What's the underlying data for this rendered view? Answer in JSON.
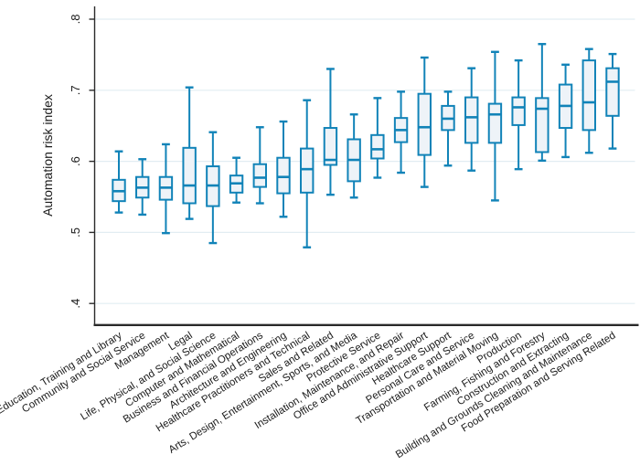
{
  "figure": {
    "background": "#ffffff",
    "aria_label": "Box plot of automation risk index by occupation category"
  },
  "chart_data": {
    "type": "box",
    "orientation": "vertical",
    "title": "",
    "xlabel": "",
    "ylabel": "Automation risk index",
    "ylim": [
      0.4,
      0.8
    ],
    "ytick_values": [
      0.4,
      0.5,
      0.6,
      0.7,
      0.8
    ],
    "ytick_labels": [
      ".4",
      ".5",
      ".6",
      ".7",
      ".8"
    ],
    "grid": true,
    "legend_position": "none",
    "boxes": [
      {
        "category": "Education, Training and Library",
        "low": 0.528,
        "q1": 0.544,
        "median": 0.558,
        "q3": 0.574,
        "high": 0.614
      },
      {
        "category": "Community and Social Service",
        "low": 0.525,
        "q1": 0.549,
        "median": 0.563,
        "q3": 0.578,
        "high": 0.603
      },
      {
        "category": "Management",
        "low": 0.499,
        "q1": 0.546,
        "median": 0.563,
        "q3": 0.578,
        "high": 0.624
      },
      {
        "category": "Legal",
        "low": 0.519,
        "q1": 0.541,
        "median": 0.566,
        "q3": 0.619,
        "high": 0.704
      },
      {
        "category": "Life, Physical, and Social Science",
        "low": 0.485,
        "q1": 0.537,
        "median": 0.566,
        "q3": 0.593,
        "high": 0.641
      },
      {
        "category": "Computer and Mathematical",
        "low": 0.542,
        "q1": 0.556,
        "median": 0.569,
        "q3": 0.58,
        "high": 0.605
      },
      {
        "category": "Business and Financial Operations",
        "low": 0.541,
        "q1": 0.564,
        "median": 0.577,
        "q3": 0.596,
        "high": 0.648
      },
      {
        "category": "Architecture and Engineering",
        "low": 0.522,
        "q1": 0.555,
        "median": 0.578,
        "q3": 0.605,
        "high": 0.656
      },
      {
        "category": "Healthcare Practitioners and Technical",
        "low": 0.479,
        "q1": 0.556,
        "median": 0.589,
        "q3": 0.618,
        "high": 0.686
      },
      {
        "category": "Sales and Related",
        "low": 0.553,
        "q1": 0.595,
        "median": 0.602,
        "q3": 0.647,
        "high": 0.73
      },
      {
        "category": "Arts, Design, Entertainment, Sports, and Media",
        "low": 0.549,
        "q1": 0.572,
        "median": 0.602,
        "q3": 0.631,
        "high": 0.666
      },
      {
        "category": "Protective Service",
        "low": 0.577,
        "q1": 0.604,
        "median": 0.617,
        "q3": 0.637,
        "high": 0.689
      },
      {
        "category": "Installation, Maintenance, and Repair",
        "low": 0.584,
        "q1": 0.627,
        "median": 0.644,
        "q3": 0.661,
        "high": 0.698
      },
      {
        "category": "Office and Administrative Support",
        "low": 0.564,
        "q1": 0.609,
        "median": 0.648,
        "q3": 0.695,
        "high": 0.746
      },
      {
        "category": "Healthcare Support",
        "low": 0.594,
        "q1": 0.644,
        "median": 0.66,
        "q3": 0.678,
        "high": 0.698
      },
      {
        "category": "Personal Care and Service",
        "low": 0.587,
        "q1": 0.626,
        "median": 0.662,
        "q3": 0.69,
        "high": 0.731
      },
      {
        "category": "Transportation and Material Moving",
        "low": 0.545,
        "q1": 0.626,
        "median": 0.666,
        "q3": 0.681,
        "high": 0.754
      },
      {
        "category": "Production",
        "low": 0.589,
        "q1": 0.651,
        "median": 0.676,
        "q3": 0.69,
        "high": 0.742
      },
      {
        "category": "Farming, Fishing and Forestry",
        "low": 0.601,
        "q1": 0.613,
        "median": 0.674,
        "q3": 0.689,
        "high": 0.765
      },
      {
        "category": "Construction and Extracting",
        "low": 0.606,
        "q1": 0.647,
        "median": 0.678,
        "q3": 0.708,
        "high": 0.736
      },
      {
        "category": "Building and Grounds Cleaning and Maintenance",
        "low": 0.612,
        "q1": 0.644,
        "median": 0.683,
        "q3": 0.742,
        "high": 0.758
      },
      {
        "category": "Food Preparation and Serving Related",
        "low": 0.618,
        "q1": 0.664,
        "median": 0.712,
        "q3": 0.731,
        "high": 0.751
      }
    ],
    "colors": {
      "box_stroke": "#1183b8",
      "box_fill": "#eef3f8",
      "grid": "#e2edf2",
      "y_axis": "#2a2a2a",
      "x_axis": "#2a2a2a",
      "text": "#1a1a1a",
      "background": "#ffffff"
    }
  }
}
